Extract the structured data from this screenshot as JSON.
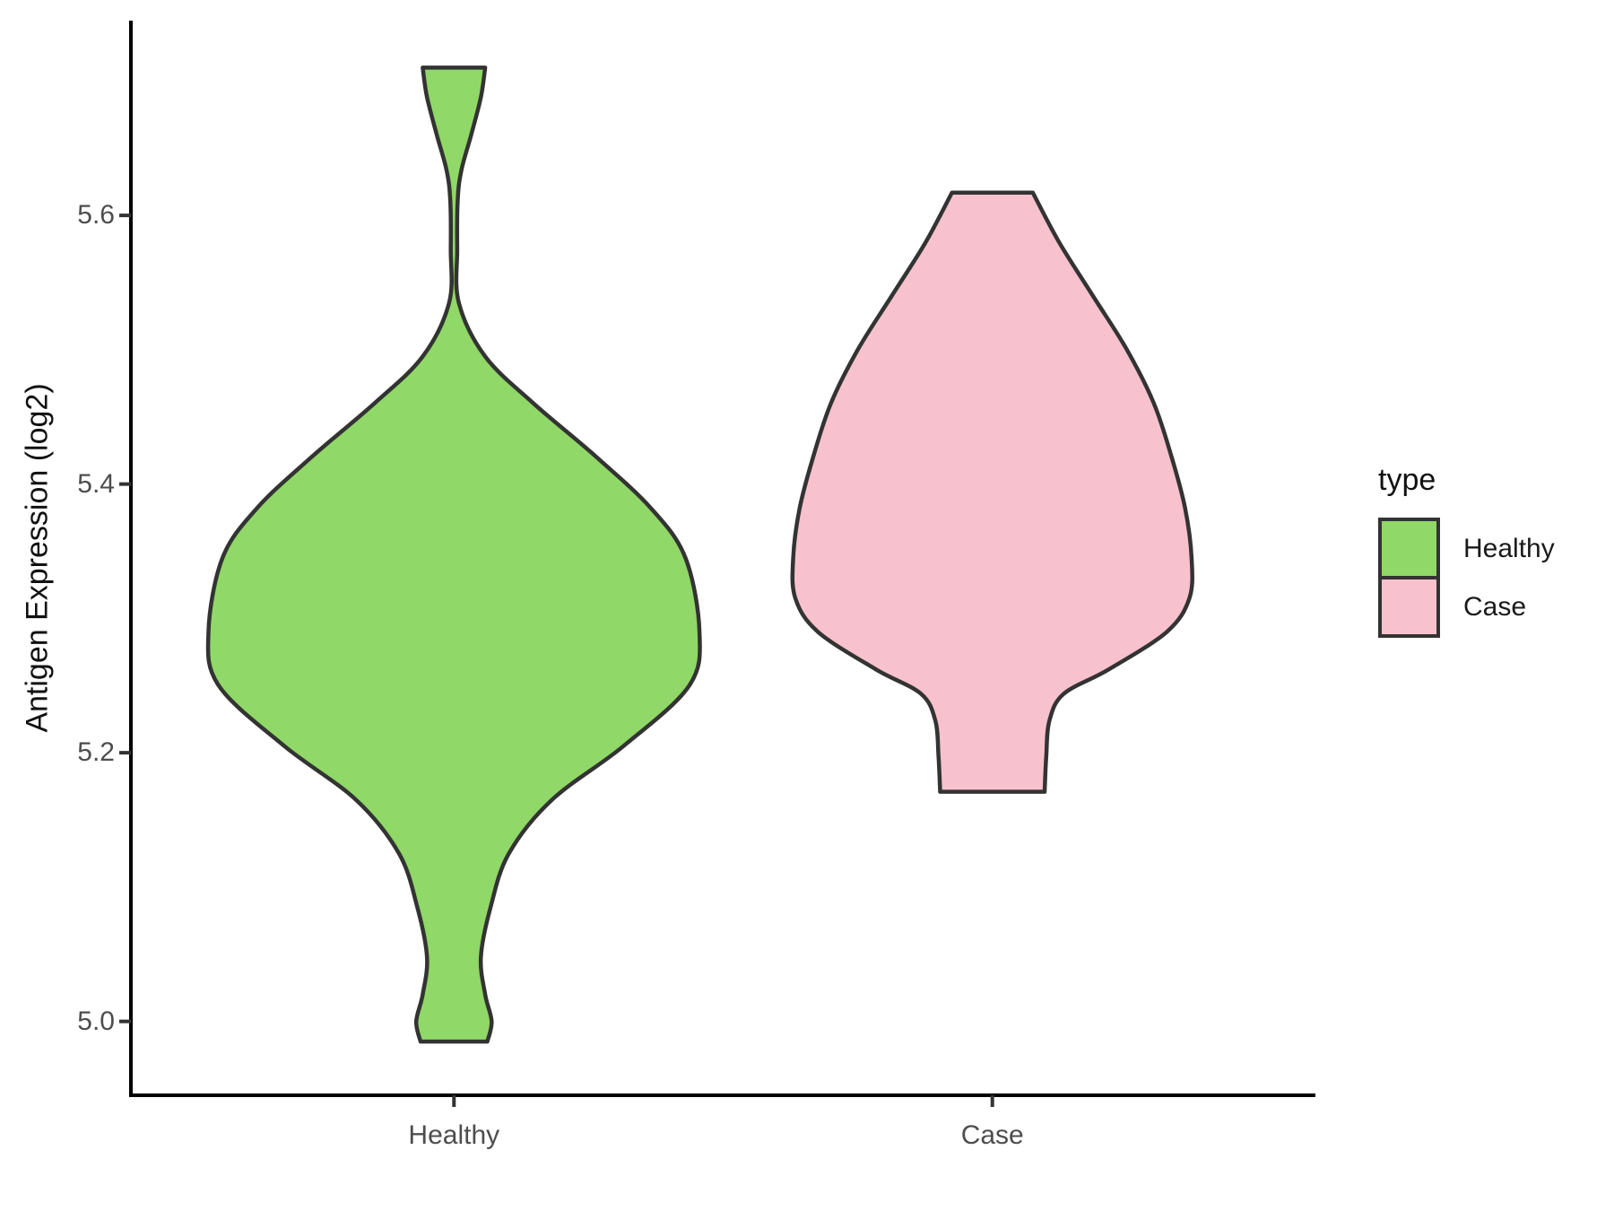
{
  "chart_data": {
    "type": "violin",
    "title": "",
    "xlabel": "",
    "ylabel": "Antigen Expression (log2)",
    "categories": [
      "Healthy",
      "Case"
    ],
    "y_ticks": [
      "5.0",
      "5.2",
      "5.4",
      "5.6"
    ],
    "y_tick_values": [
      5.0,
      5.2,
      5.4,
      5.6
    ],
    "ylim": [
      4.945,
      5.745
    ],
    "grid": "off",
    "legend_position": "right",
    "legend": {
      "title": "type",
      "items": [
        {
          "label": "Healthy",
          "color": "#90D867"
        },
        {
          "label": "Case",
          "color": "#F7C2CD"
        }
      ]
    },
    "colors": {
      "healthy_fill": "#90D867",
      "case_fill": "#F7C2CD",
      "violin_outline": "#333333",
      "axis_line": "#000000",
      "tick_mark": "#333333",
      "tick_text": "#4D4D4D",
      "title_text": "#111111"
    },
    "violins": [
      {
        "category": "Healthy",
        "fill": "#90D867",
        "value_range": [
          4.985,
          5.71
        ],
        "profile": [
          {
            "v": 5.71,
            "w": 0.058
          },
          {
            "v": 5.688,
            "w": 0.05
          },
          {
            "v": 5.66,
            "w": 0.032
          },
          {
            "v": 5.634,
            "w": 0.014
          },
          {
            "v": 5.612,
            "w": 0.007
          },
          {
            "v": 5.575,
            "w": 0.006
          },
          {
            "v": 5.535,
            "w": 0.009
          },
          {
            "v": 5.495,
            "w": 0.058
          },
          {
            "v": 5.46,
            "w": 0.148
          },
          {
            "v": 5.42,
            "w": 0.265
          },
          {
            "v": 5.382,
            "w": 0.366
          },
          {
            "v": 5.345,
            "w": 0.43
          },
          {
            "v": 5.29,
            "w": 0.456
          },
          {
            "v": 5.25,
            "w": 0.437
          },
          {
            "v": 5.205,
            "w": 0.315
          },
          {
            "v": 5.165,
            "w": 0.182
          },
          {
            "v": 5.125,
            "w": 0.102
          },
          {
            "v": 5.085,
            "w": 0.068
          },
          {
            "v": 5.048,
            "w": 0.05
          },
          {
            "v": 5.02,
            "w": 0.058
          },
          {
            "v": 5.0,
            "w": 0.07
          },
          {
            "v": 4.985,
            "w": 0.062
          }
        ]
      },
      {
        "category": "Case",
        "fill": "#F7C2CD",
        "value_range": [
          5.171,
          5.617
        ],
        "profile": [
          {
            "v": 5.617,
            "w": 0.075
          },
          {
            "v": 5.58,
            "w": 0.124
          },
          {
            "v": 5.54,
            "w": 0.187
          },
          {
            "v": 5.5,
            "w": 0.25
          },
          {
            "v": 5.46,
            "w": 0.3
          },
          {
            "v": 5.42,
            "w": 0.333
          },
          {
            "v": 5.382,
            "w": 0.358
          },
          {
            "v": 5.345,
            "w": 0.37
          },
          {
            "v": 5.315,
            "w": 0.366
          },
          {
            "v": 5.29,
            "w": 0.324
          },
          {
            "v": 5.262,
            "w": 0.216
          },
          {
            "v": 5.244,
            "w": 0.133
          },
          {
            "v": 5.224,
            "w": 0.106
          },
          {
            "v": 5.197,
            "w": 0.1
          },
          {
            "v": 5.171,
            "w": 0.097
          }
        ]
      }
    ]
  }
}
